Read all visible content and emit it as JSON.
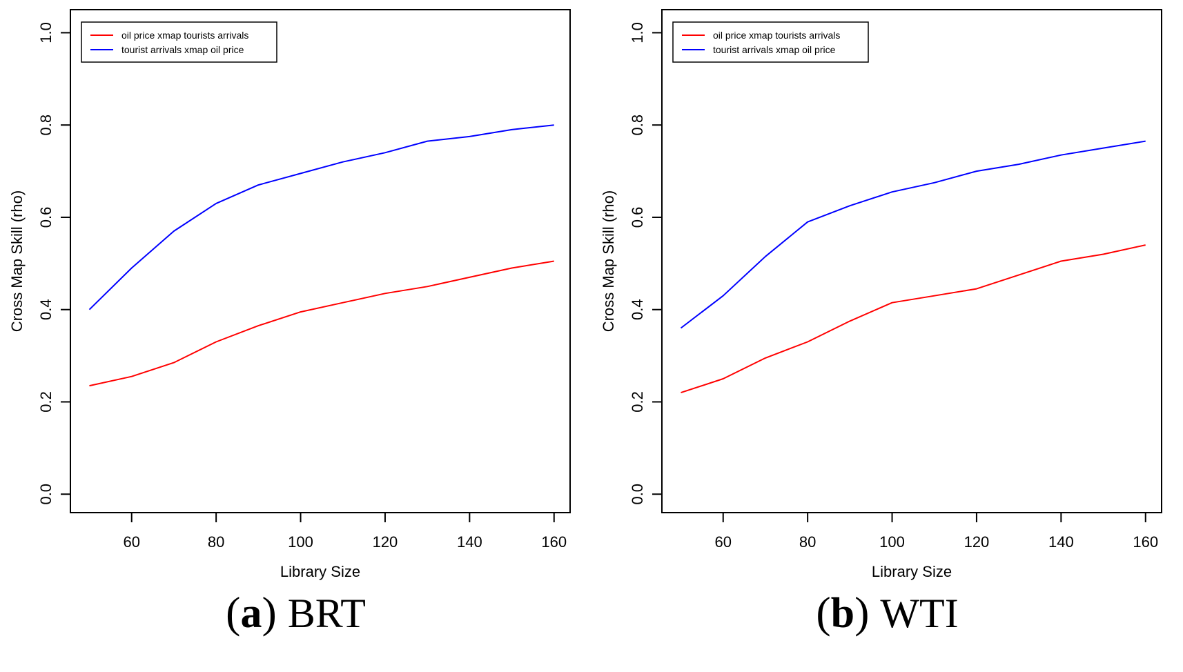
{
  "figure": {
    "background": "#ffffff",
    "text_color": "#000000",
    "panels": [
      {
        "id": "brt",
        "caption": {
          "open": "(",
          "letter": "a",
          "close": ")",
          "label": "BRT"
        }
      },
      {
        "id": "wti",
        "caption": {
          "open": "(",
          "letter": "b",
          "close": ")",
          "label": "WTI"
        }
      }
    ]
  },
  "chart_data": [
    {
      "type": "line",
      "panel_label": "(a) BRT",
      "title": "",
      "xlabel": "Library Size",
      "ylabel": "Cross Map Skill (rho)",
      "x": [
        50,
        60,
        70,
        80,
        90,
        100,
        110,
        120,
        130,
        140,
        150,
        160
      ],
      "xticks": [
        60,
        80,
        100,
        120,
        140,
        160
      ],
      "xticklabels": [
        "60",
        "80",
        "100",
        "120",
        "140",
        "160"
      ],
      "yticks": [
        0.0,
        0.2,
        0.4,
        0.6,
        0.8,
        1.0
      ],
      "yticklabels": [
        "0.0",
        "0.2",
        "0.4",
        "0.6",
        "0.8",
        "1.0"
      ],
      "xlim": [
        45.5,
        163.8
      ],
      "ylim": [
        -0.04,
        1.05
      ],
      "grid": false,
      "legend_position": "top-left",
      "series": [
        {
          "name": "oil price xmap tourists arrivals",
          "color": "#ff0000",
          "values": [
            0.235,
            0.255,
            0.285,
            0.33,
            0.365,
            0.395,
            0.415,
            0.435,
            0.45,
            0.47,
            0.49,
            0.505
          ]
        },
        {
          "name": "tourist arrivals xmap oil price",
          "color": "#0000ff",
          "values": [
            0.4,
            0.49,
            0.57,
            0.63,
            0.67,
            0.695,
            0.72,
            0.74,
            0.765,
            0.775,
            0.79,
            0.8
          ]
        }
      ]
    },
    {
      "type": "line",
      "panel_label": "(b) WTI",
      "title": "",
      "xlabel": "Library Size",
      "ylabel": "Cross Map Skill (rho)",
      "x": [
        50,
        60,
        70,
        80,
        90,
        100,
        110,
        120,
        130,
        140,
        150,
        160
      ],
      "xticks": [
        60,
        80,
        100,
        120,
        140,
        160
      ],
      "xticklabels": [
        "60",
        "80",
        "100",
        "120",
        "140",
        "160"
      ],
      "yticks": [
        0.0,
        0.2,
        0.4,
        0.6,
        0.8,
        1.0
      ],
      "yticklabels": [
        "0.0",
        "0.2",
        "0.4",
        "0.6",
        "0.8",
        "1.0"
      ],
      "xlim": [
        45.5,
        163.8
      ],
      "ylim": [
        -0.04,
        1.05
      ],
      "grid": false,
      "legend_position": "top-left",
      "series": [
        {
          "name": "oil price xmap tourists arrivals",
          "color": "#ff0000",
          "values": [
            0.22,
            0.25,
            0.295,
            0.33,
            0.375,
            0.415,
            0.43,
            0.445,
            0.475,
            0.505,
            0.52,
            0.54
          ]
        },
        {
          "name": "tourist arrivals xmap oil price",
          "color": "#0000ff",
          "values": [
            0.36,
            0.43,
            0.515,
            0.59,
            0.625,
            0.655,
            0.675,
            0.7,
            0.715,
            0.735,
            0.75,
            0.765
          ]
        }
      ]
    }
  ]
}
